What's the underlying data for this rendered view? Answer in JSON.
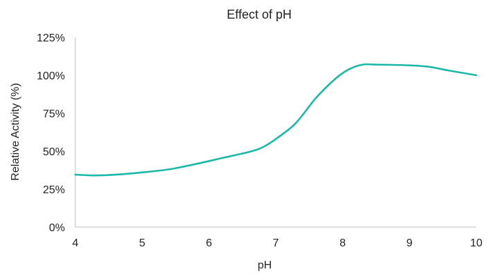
{
  "chart_data": {
    "type": "line",
    "title": "Effect of pH",
    "xlabel": "pH",
    "ylabel": "Relative Activity (%)",
    "xlim": [
      4,
      10
    ],
    "ylim": [
      0,
      125
    ],
    "x_ticks": [
      {
        "value": 4,
        "label": "4"
      },
      {
        "value": 5,
        "label": "5"
      },
      {
        "value": 6,
        "label": "6"
      },
      {
        "value": 7,
        "label": "7"
      },
      {
        "value": 8,
        "label": "8"
      },
      {
        "value": 9,
        "label": "9"
      },
      {
        "value": 10,
        "label": "10"
      }
    ],
    "y_ticks": [
      {
        "value": 0,
        "label": "0%"
      },
      {
        "value": 25,
        "label": "25%"
      },
      {
        "value": 50,
        "label": "50%"
      },
      {
        "value": 75,
        "label": "75%"
      },
      {
        "value": 100,
        "label": "100%"
      },
      {
        "value": 125,
        "label": "125%"
      }
    ],
    "grid": false,
    "series": [
      {
        "color": "#1bb8a9",
        "x": [
          4.0,
          4.3,
          4.6,
          5.0,
          5.4,
          5.8,
          6.2,
          6.6,
          6.8,
          7.0,
          7.3,
          7.6,
          7.9,
          8.1,
          8.3,
          8.5,
          9.0,
          9.3,
          9.6,
          10.0
        ],
        "y": [
          34.5,
          34.0,
          34.5,
          36.0,
          38.0,
          41.5,
          45.5,
          49.5,
          52.5,
          58.0,
          68.5,
          85.0,
          98.0,
          104.0,
          107.0,
          107.0,
          106.5,
          105.5,
          103.0,
          100.0
        ]
      }
    ]
  }
}
